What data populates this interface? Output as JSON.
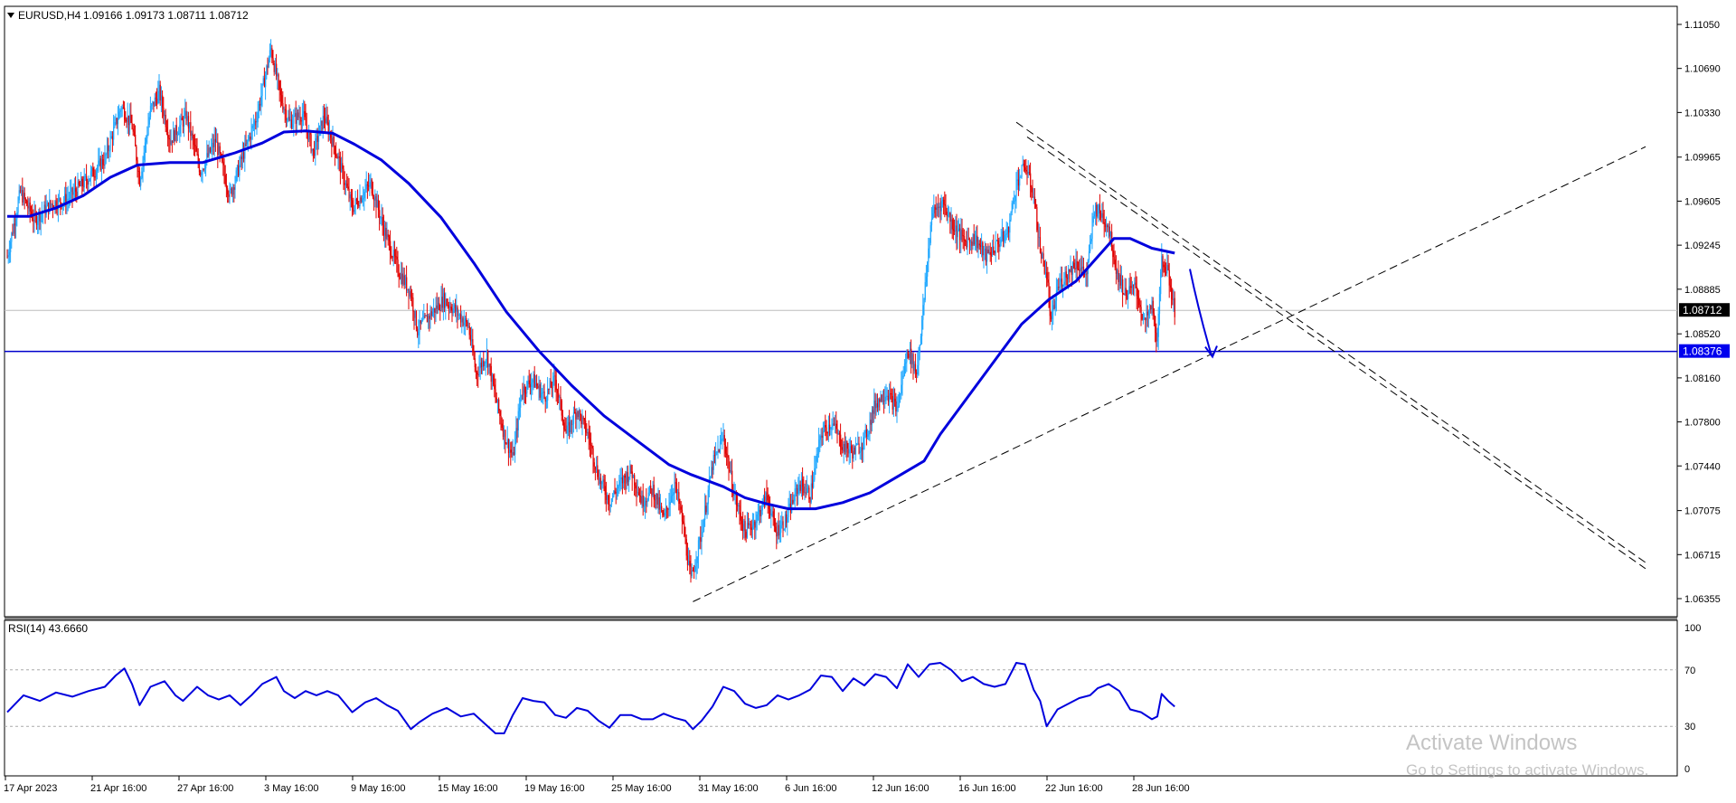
{
  "chart_data": [
    {
      "type": "candlestick",
      "symbol_header": "EURUSD,H4",
      "ohlc_text": "1.09166 1.09173 1.08711 1.08712",
      "ylim": [
        1.062,
        1.1125
      ],
      "price_ticks": [
        "1.11050",
        "1.10690",
        "1.10330",
        "1.09965",
        "1.09605",
        "1.09245",
        "1.08885",
        "1.08520",
        "1.08160",
        "1.07800",
        "1.07440",
        "1.07075",
        "1.06715",
        "1.06355"
      ],
      "x_labels": [
        "17 Apr 2023",
        "21 Apr 16:00",
        "27 Apr 16:00",
        "3 May 16:00",
        "9 May 16:00",
        "15 May 16:00",
        "19 May 16:00",
        "25 May 16:00",
        "31 May 16:00",
        "6 Jun 16:00",
        "12 Jun 16:00",
        "16 Jun 16:00",
        "22 Jun 16:00",
        "28 Jun 16:00"
      ],
      "current_price": "1.08712",
      "support_level": "1.08376",
      "colors": {
        "up": "#1ea7ff",
        "down": "#e00000",
        "ma": "#0000dd",
        "support": "#0000cc",
        "current_tag": "#000000",
        "support_tag": "#0000ee"
      },
      "close_path": [
        [
          0,
          1.0915
        ],
        [
          12,
          1.0968
        ],
        [
          25,
          1.0945
        ],
        [
          40,
          1.0958
        ],
        [
          55,
          1.0962
        ],
        [
          70,
          1.0975
        ],
        [
          90,
          1.0995
        ],
        [
          105,
          1.1038
        ],
        [
          115,
          1.1022
        ],
        [
          122,
          1.0978
        ],
        [
          132,
          1.1035
        ],
        [
          140,
          1.105
        ],
        [
          150,
          1.101
        ],
        [
          165,
          1.103
        ],
        [
          178,
          1.0985
        ],
        [
          192,
          1.101
        ],
        [
          205,
          1.0965
        ],
        [
          218,
          1.1
        ],
        [
          230,
          1.103
        ],
        [
          243,
          1.1085
        ],
        [
          252,
          1.1045
        ],
        [
          260,
          1.1025
        ],
        [
          272,
          1.1032
        ],
        [
          282,
          1.1
        ],
        [
          292,
          1.103
        ],
        [
          305,
          1.0995
        ],
        [
          318,
          1.0955
        ],
        [
          335,
          1.0975
        ],
        [
          348,
          1.0935
        ],
        [
          360,
          1.0905
        ],
        [
          372,
          1.0885
        ],
        [
          378,
          1.0855
        ],
        [
          390,
          1.0868
        ],
        [
          402,
          1.088
        ],
        [
          412,
          1.0872
        ],
        [
          425,
          1.0858
        ],
        [
          432,
          1.082
        ],
        [
          442,
          1.0835
        ],
        [
          450,
          1.08
        ],
        [
          458,
          1.077
        ],
        [
          466,
          1.075
        ],
        [
          474,
          1.0805
        ],
        [
          484,
          1.0815
        ],
        [
          495,
          1.08
        ],
        [
          505,
          1.0815
        ],
        [
          515,
          1.077
        ],
        [
          525,
          1.079
        ],
        [
          535,
          1.077
        ],
        [
          545,
          1.0735
        ],
        [
          555,
          1.0715
        ],
        [
          565,
          1.073
        ],
        [
          575,
          1.074
        ],
        [
          585,
          1.0715
        ],
        [
          595,
          1.0725
        ],
        [
          605,
          1.07
        ],
        [
          615,
          1.073
        ],
        [
          622,
          1.07
        ],
        [
          630,
          1.065
        ],
        [
          640,
          1.069
        ],
        [
          650,
          1.0745
        ],
        [
          660,
          1.0768
        ],
        [
          670,
          1.072
        ],
        [
          680,
          1.069
        ],
        [
          690,
          1.07
        ],
        [
          700,
          1.072
        ],
        [
          708,
          1.069
        ],
        [
          718,
          1.07
        ],
        [
          730,
          1.073
        ],
        [
          740,
          1.072
        ],
        [
          750,
          1.077
        ],
        [
          760,
          1.078
        ],
        [
          770,
          1.076
        ],
        [
          780,
          1.0755
        ],
        [
          790,
          1.0765
        ],
        [
          800,
          1.0795
        ],
        [
          810,
          1.0805
        ],
        [
          820,
          1.079
        ],
        [
          830,
          1.084
        ],
        [
          838,
          1.082
        ],
        [
          845,
          1.088
        ],
        [
          852,
          1.095
        ],
        [
          862,
          1.096
        ],
        [
          872,
          1.094
        ],
        [
          882,
          1.0928
        ],
        [
          892,
          1.093
        ],
        [
          902,
          1.0915
        ],
        [
          912,
          1.0925
        ],
        [
          922,
          1.0935
        ],
        [
          930,
          1.0975
        ],
        [
          938,
          1.099
        ],
        [
          946,
          1.0965
        ],
        [
          952,
          1.092
        ],
        [
          958,
          1.09
        ],
        [
          962,
          1.086
        ],
        [
          968,
          1.089
        ],
        [
          975,
          1.09
        ],
        [
          985,
          1.091
        ],
        [
          995,
          1.09
        ],
        [
          1002,
          1.0955
        ],
        [
          1008,
          1.095
        ],
        [
          1015,
          1.094
        ],
        [
          1022,
          1.0905
        ],
        [
          1030,
          1.0885
        ],
        [
          1040,
          1.089
        ],
        [
          1048,
          1.086
        ],
        [
          1055,
          1.0875
        ],
        [
          1060,
          1.0845
        ],
        [
          1064,
          1.0915
        ],
        [
          1070,
          1.09
        ],
        [
          1076,
          1.0871
        ]
      ],
      "ma_path": [
        [
          0,
          1.0948
        ],
        [
          20,
          1.0948
        ],
        [
          45,
          1.0955
        ],
        [
          70,
          1.0965
        ],
        [
          95,
          1.098
        ],
        [
          120,
          1.099
        ],
        [
          150,
          1.0992
        ],
        [
          180,
          1.0992
        ],
        [
          210,
          1.1
        ],
        [
          235,
          1.1008
        ],
        [
          255,
          1.1017
        ],
        [
          275,
          1.1018
        ],
        [
          300,
          1.1016
        ],
        [
          320,
          1.1007
        ],
        [
          345,
          1.0994
        ],
        [
          370,
          1.0975
        ],
        [
          400,
          1.0947
        ],
        [
          430,
          1.091
        ],
        [
          460,
          1.087
        ],
        [
          490,
          1.0838
        ],
        [
          520,
          1.081
        ],
        [
          550,
          1.0785
        ],
        [
          580,
          1.0765
        ],
        [
          610,
          1.0745
        ],
        [
          630,
          1.0737
        ],
        [
          660,
          1.0727
        ],
        [
          680,
          1.0718
        ],
        [
          700,
          1.0713
        ],
        [
          720,
          1.0709
        ],
        [
          745,
          1.0709
        ],
        [
          770,
          1.0714
        ],
        [
          795,
          1.0722
        ],
        [
          820,
          1.0735
        ],
        [
          845,
          1.0748
        ],
        [
          860,
          1.077
        ],
        [
          885,
          1.08
        ],
        [
          910,
          1.083
        ],
        [
          935,
          1.086
        ],
        [
          960,
          1.088
        ],
        [
          985,
          1.0895
        ],
        [
          1005,
          1.0915
        ],
        [
          1020,
          1.093
        ],
        [
          1035,
          1.093
        ],
        [
          1055,
          1.0922
        ],
        [
          1076,
          1.0918
        ]
      ],
      "trendlines": [
        {
          "name": "rising-support",
          "from": [
            632,
            1.0633
          ],
          "to": [
            1510,
            1.1005
          ]
        },
        {
          "name": "falling-resistance-a",
          "from": [
            930,
            1.1025
          ],
          "to": [
            1510,
            1.0665
          ]
        },
        {
          "name": "falling-resistance-b",
          "from": [
            940,
            1.1013
          ],
          "to": [
            1510,
            1.066
          ]
        }
      ],
      "forecast_arrow": {
        "from": [
          1090,
          1.0905
        ],
        "to": [
          1110,
          1.0834
        ]
      }
    },
    {
      "type": "line",
      "header": "RSI(14) 43.6660",
      "ylim": [
        0,
        100
      ],
      "levels": [
        "100",
        "70",
        "30",
        "0"
      ],
      "dashed_levels": [
        70,
        30
      ],
      "color": "#0000dd",
      "x": [
        0,
        15,
        30,
        45,
        60,
        75,
        90,
        100,
        108,
        115,
        122,
        132,
        145,
        155,
        162,
        175,
        185,
        195,
        205,
        215,
        225,
        235,
        248,
        255,
        265,
        275,
        285,
        295,
        305,
        318,
        330,
        340,
        350,
        360,
        372,
        380,
        392,
        405,
        418,
        430,
        440,
        450,
        458,
        466,
        475,
        485,
        495,
        505,
        515,
        525,
        535,
        545,
        555,
        565,
        575,
        585,
        595,
        605,
        615,
        625,
        632,
        640,
        650,
        660,
        670,
        680,
        690,
        700,
        710,
        720,
        730,
        740,
        750,
        760,
        770,
        780,
        790,
        800,
        810,
        820,
        830,
        840,
        850,
        860,
        870,
        880,
        890,
        900,
        910,
        920,
        930,
        938,
        946,
        952,
        958,
        968,
        978,
        988,
        998,
        1005,
        1015,
        1025,
        1035,
        1045,
        1055,
        1060,
        1064,
        1070,
        1076
      ],
      "values": [
        40,
        52,
        48,
        54,
        51,
        55,
        58,
        66,
        71,
        60,
        45,
        58,
        62,
        52,
        48,
        58,
        52,
        49,
        52,
        45,
        52,
        60,
        65,
        55,
        50,
        55,
        52,
        55,
        52,
        40,
        47,
        50,
        45,
        41,
        28,
        33,
        39,
        43,
        37,
        39,
        32,
        25,
        25,
        38,
        50,
        48,
        47,
        38,
        36,
        43,
        41,
        34,
        29,
        38,
        38,
        35,
        35,
        39,
        36,
        34,
        28,
        34,
        44,
        58,
        55,
        46,
        43,
        45,
        52,
        49,
        52,
        56,
        66,
        65,
        55,
        64,
        59,
        67,
        65,
        57,
        74,
        65,
        74,
        75,
        70,
        62,
        65,
        60,
        58,
        60,
        75,
        74,
        56,
        48,
        30,
        42,
        46,
        50,
        52,
        57,
        60,
        55,
        42,
        40,
        35,
        37,
        53,
        48,
        44
      ]
    }
  ],
  "watermark": {
    "line1": "Activate Windows",
    "line2": "Go to Settings to activate Windows."
  }
}
